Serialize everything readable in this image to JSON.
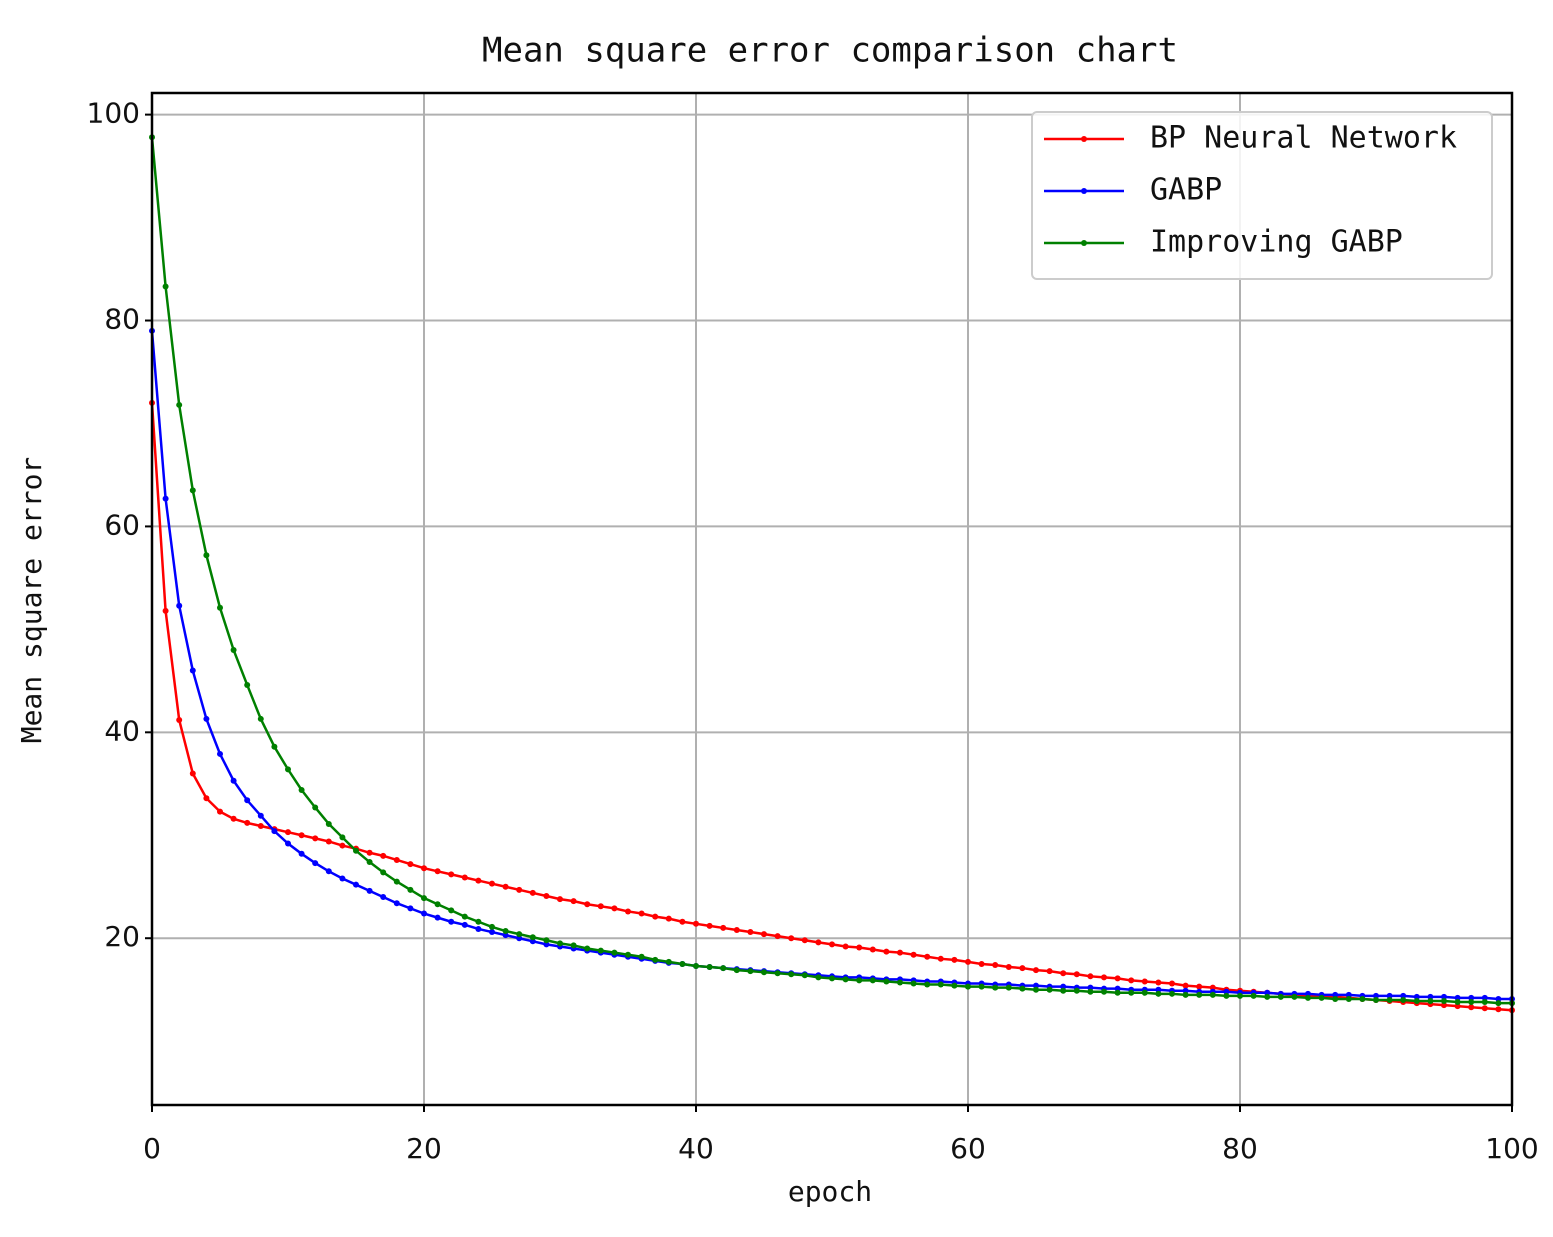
{
  "chart_data": {
    "type": "line",
    "title": "Mean square error comparison chart",
    "x_label": "epoch",
    "y_label": "Mean square error",
    "x": [
      0,
      1,
      2,
      3,
      4,
      5,
      6,
      7,
      8,
      9,
      10,
      11,
      12,
      13,
      14,
      15,
      16,
      17,
      18,
      19,
      20,
      21,
      22,
      23,
      24,
      25,
      26,
      27,
      28,
      29,
      30,
      31,
      32,
      33,
      34,
      35,
      36,
      37,
      38,
      39,
      40,
      41,
      42,
      43,
      44,
      45,
      46,
      47,
      48,
      49,
      50,
      51,
      52,
      53,
      54,
      55,
      56,
      57,
      58,
      59,
      60,
      61,
      62,
      63,
      64,
      65,
      66,
      67,
      68,
      69,
      70,
      71,
      72,
      73,
      74,
      75,
      76,
      77,
      78,
      79,
      80,
      81,
      82,
      83,
      84,
      85,
      86,
      87,
      88,
      89,
      90,
      91,
      92,
      93,
      94,
      95,
      96,
      97,
      98,
      99,
      100
    ],
    "series": [
      {
        "name": "BP Neural Network",
        "color": "#ff0000",
        "values": [
          72,
          51.8,
          41.2,
          36.0,
          33.6,
          32.3,
          31.6,
          31.2,
          30.9,
          30.6,
          30.3,
          30.0,
          29.7,
          29.4,
          29.0,
          28.7,
          28.3,
          28.0,
          27.6,
          27.2,
          26.8,
          26.5,
          26.2,
          25.9,
          25.6,
          25.3,
          25.0,
          24.7,
          24.4,
          24.1,
          23.8,
          23.6,
          23.3,
          23.1,
          22.9,
          22.6,
          22.4,
          22.1,
          21.9,
          21.6,
          21.4,
          21.2,
          21.0,
          20.8,
          20.6,
          20.4,
          20.2,
          20.0,
          19.8,
          19.6,
          19.4,
          19.2,
          19.1,
          18.9,
          18.7,
          18.6,
          18.4,
          18.2,
          18.0,
          17.9,
          17.7,
          17.5,
          17.4,
          17.2,
          17.1,
          16.9,
          16.8,
          16.6,
          16.5,
          16.3,
          16.2,
          16.1,
          15.9,
          15.8,
          15.7,
          15.6,
          15.4,
          15.3,
          15.2,
          15.0,
          14.9,
          14.8,
          14.7,
          14.6,
          14.5,
          14.4,
          14.4,
          14.3,
          14.2,
          14.1,
          14.0,
          13.9,
          13.8,
          13.7,
          13.6,
          13.5,
          13.4,
          13.3,
          13.2,
          13.1,
          13.0
        ]
      },
      {
        "name": "GABP",
        "color": "#0000ff",
        "values": [
          79,
          62.7,
          52.3,
          46.0,
          41.3,
          37.9,
          35.3,
          33.4,
          31.9,
          30.4,
          29.2,
          28.2,
          27.3,
          26.5,
          25.8,
          25.2,
          24.6,
          24.0,
          23.4,
          22.9,
          22.4,
          22.0,
          21.6,
          21.3,
          20.9,
          20.6,
          20.3,
          20.0,
          19.7,
          19.4,
          19.2,
          19.0,
          18.8,
          18.6,
          18.4,
          18.2,
          18.0,
          17.8,
          17.6,
          17.5,
          17.3,
          17.2,
          17.1,
          17.0,
          16.9,
          16.8,
          16.7,
          16.6,
          16.5,
          16.4,
          16.3,
          16.2,
          16.2,
          16.1,
          16.0,
          16.0,
          15.9,
          15.8,
          15.8,
          15.7,
          15.6,
          15.6,
          15.5,
          15.5,
          15.4,
          15.4,
          15.3,
          15.3,
          15.2,
          15.2,
          15.1,
          15.1,
          15.0,
          15.0,
          15.0,
          14.9,
          14.9,
          14.8,
          14.8,
          14.8,
          14.7,
          14.7,
          14.7,
          14.6,
          14.6,
          14.6,
          14.5,
          14.5,
          14.5,
          14.4,
          14.4,
          14.4,
          14.4,
          14.3,
          14.3,
          14.3,
          14.2,
          14.2,
          14.2,
          14.1,
          14.1
        ]
      },
      {
        "name": "Improving GABP",
        "color": "#008000",
        "values": [
          97.8,
          83.3,
          71.8,
          63.5,
          57.2,
          52.1,
          48.0,
          44.6,
          41.3,
          38.6,
          36.4,
          34.4,
          32.7,
          31.1,
          29.8,
          28.5,
          27.4,
          26.4,
          25.5,
          24.7,
          23.9,
          23.3,
          22.7,
          22.1,
          21.6,
          21.1,
          20.7,
          20.4,
          20.1,
          19.8,
          19.5,
          19.3,
          19.0,
          18.8,
          18.6,
          18.4,
          18.2,
          17.9,
          17.7,
          17.5,
          17.3,
          17.2,
          17.1,
          16.9,
          16.8,
          16.7,
          16.6,
          16.5,
          16.4,
          16.2,
          16.1,
          16.0,
          15.9,
          15.9,
          15.8,
          15.7,
          15.6,
          15.5,
          15.5,
          15.4,
          15.3,
          15.3,
          15.2,
          15.2,
          15.1,
          15.0,
          15.0,
          14.9,
          14.9,
          14.8,
          14.8,
          14.7,
          14.7,
          14.7,
          14.6,
          14.6,
          14.5,
          14.5,
          14.5,
          14.4,
          14.4,
          14.4,
          14.3,
          14.3,
          14.3,
          14.2,
          14.2,
          14.1,
          14.1,
          14.1,
          14.0,
          14.0,
          14.0,
          13.9,
          13.9,
          13.9,
          13.8,
          13.8,
          13.8,
          13.7,
          13.7
        ]
      }
    ],
    "xlim": [
      0,
      100
    ],
    "xticks": [
      0,
      20,
      40,
      60,
      80,
      100
    ],
    "ylim": [
      3.8,
      102.1
    ],
    "yticks": [
      20,
      40,
      60,
      80,
      100
    ],
    "grid": true,
    "legend": "upper right"
  }
}
